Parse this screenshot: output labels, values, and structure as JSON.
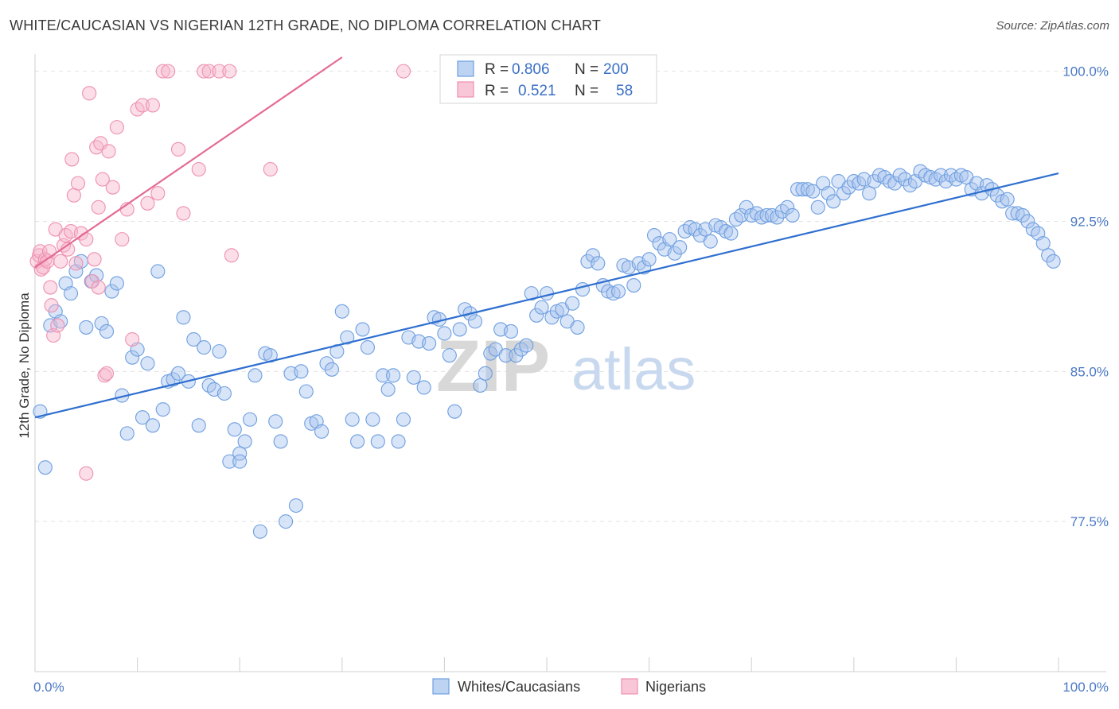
{
  "title": "WHITE/CAUCASIAN VS NIGERIAN 12TH GRADE, NO DIPLOMA CORRELATION CHART",
  "source": "Source: ZipAtlas.com",
  "watermark": {
    "zip": "ZIP",
    "atlas": "atlas"
  },
  "colors": {
    "blue": "#6e9fe0",
    "blue_line": "#2e6fd0",
    "pink": "#ee90b0",
    "pink_line": "#e46a94"
  },
  "legend_top": {
    "rows": [
      {
        "r_label": "R = ",
        "r_value": "0.806",
        "n_label": "N = ",
        "n_value": "200"
      },
      {
        "r_label": "R = ",
        "r_value": "0.521",
        "n_label": "N = ",
        "n_value": "58"
      }
    ]
  },
  "legend_bottom": [
    "Whites/Caucasians",
    "Nigerians"
  ],
  "chart_data": {
    "type": "scatter",
    "xlabel": "",
    "ylabel": "12th Grade, No Diploma",
    "xlim": [
      0,
      100
    ],
    "ylim": [
      70.0,
      100.7
    ],
    "x_tick_labels": [
      {
        "value": 0,
        "label": "0.0%"
      },
      {
        "value": 100,
        "label": "100.0%"
      }
    ],
    "y_tick_labels": [
      {
        "value": 100.0,
        "label": "100.0%"
      },
      {
        "value": 92.5,
        "label": "92.5%"
      },
      {
        "value": 85.0,
        "label": "85.0%"
      },
      {
        "value": 77.5,
        "label": "77.5%"
      }
    ],
    "grid": true,
    "series": [
      {
        "name": "Whites/Caucasians",
        "regression": {
          "x": [
            0,
            100
          ],
          "y": [
            82.7,
            94.9
          ]
        },
        "points": [
          [
            0.5,
            83
          ],
          [
            1,
            80.2
          ],
          [
            1.5,
            87.3
          ],
          [
            2,
            88
          ],
          [
            2.5,
            87.5
          ],
          [
            3,
            89.4
          ],
          [
            3.5,
            88.9
          ],
          [
            4,
            90
          ],
          [
            4.5,
            90.5
          ],
          [
            5,
            87.2
          ],
          [
            5.5,
            89.5
          ],
          [
            6,
            89.8
          ],
          [
            6.5,
            87.4
          ],
          [
            7,
            87
          ],
          [
            7.5,
            89
          ],
          [
            8,
            89.4
          ],
          [
            8.5,
            83.8
          ],
          [
            9,
            81.9
          ],
          [
            9.5,
            85.7
          ],
          [
            10,
            86.1
          ],
          [
            10.5,
            82.7
          ],
          [
            11,
            85.4
          ],
          [
            11.5,
            82.3
          ],
          [
            12,
            90
          ],
          [
            12.5,
            83.1
          ],
          [
            13,
            84.5
          ],
          [
            13.5,
            84.6
          ],
          [
            14,
            84.9
          ],
          [
            14.5,
            87.7
          ],
          [
            15,
            84.5
          ],
          [
            15.5,
            86.6
          ],
          [
            16,
            82.3
          ],
          [
            16.5,
            86.2
          ],
          [
            17,
            84.3
          ],
          [
            17.5,
            84.1
          ],
          [
            18,
            86
          ],
          [
            18.5,
            83.9
          ],
          [
            19,
            80.5
          ],
          [
            19.5,
            82.1
          ],
          [
            20,
            80.9
          ],
          [
            20.5,
            81.5
          ],
          [
            21,
            82.6
          ],
          [
            21.5,
            84.8
          ],
          [
            22,
            77
          ],
          [
            22.5,
            85.9
          ],
          [
            23,
            85.8
          ],
          [
            23.5,
            82.5
          ],
          [
            24,
            81.5
          ],
          [
            24.5,
            77.5
          ],
          [
            25,
            84.9
          ],
          [
            25.5,
            78.3
          ],
          [
            26,
            85
          ],
          [
            26.5,
            84
          ],
          [
            27,
            82.4
          ],
          [
            27.5,
            82.5
          ],
          [
            28,
            82
          ],
          [
            28.5,
            85.4
          ],
          [
            29,
            85.1
          ],
          [
            29.5,
            86
          ],
          [
            30,
            88
          ],
          [
            30.5,
            86.7
          ],
          [
            31,
            82.6
          ],
          [
            31.5,
            81.5
          ],
          [
            32,
            87.1
          ],
          [
            32.5,
            86.2
          ],
          [
            33,
            82.6
          ],
          [
            33.5,
            81.5
          ],
          [
            34,
            84.8
          ],
          [
            34.5,
            84.1
          ],
          [
            35,
            84.8
          ],
          [
            35.5,
            81.5
          ],
          [
            36,
            82.6
          ],
          [
            36.5,
            86.7
          ],
          [
            37,
            84.7
          ],
          [
            37.5,
            86.5
          ],
          [
            38,
            84.2
          ],
          [
            38.5,
            86.4
          ],
          [
            39,
            87.7
          ],
          [
            39.5,
            87.6
          ],
          [
            40,
            86.9
          ],
          [
            40.5,
            85.8
          ],
          [
            41,
            83
          ],
          [
            41.5,
            87.1
          ],
          [
            42,
            88.1
          ],
          [
            42.5,
            87.9
          ],
          [
            43,
            87.5
          ],
          [
            43.5,
            84.3
          ],
          [
            44,
            84.9
          ],
          [
            44.5,
            85.9
          ],
          [
            45,
            86.1
          ],
          [
            45.5,
            87.1
          ],
          [
            46,
            85.8
          ],
          [
            46.5,
            87
          ],
          [
            47,
            85.8
          ],
          [
            47.5,
            86.1
          ],
          [
            48,
            86.3
          ],
          [
            48.5,
            88.9
          ],
          [
            49,
            87.8
          ],
          [
            49.5,
            88.2
          ],
          [
            50,
            88.9
          ],
          [
            50.5,
            87.7
          ],
          [
            51,
            88
          ],
          [
            51.5,
            88.1
          ],
          [
            52,
            87.5
          ],
          [
            52.5,
            88.4
          ],
          [
            53,
            87.2
          ],
          [
            53.5,
            89.1
          ],
          [
            54,
            90.5
          ],
          [
            54.5,
            90.8
          ],
          [
            55,
            90.4
          ],
          [
            55.5,
            89.3
          ],
          [
            56,
            89
          ],
          [
            56.5,
            88.9
          ],
          [
            57,
            89
          ],
          [
            57.5,
            90.3
          ],
          [
            58,
            90.2
          ],
          [
            58.5,
            89.3
          ],
          [
            59,
            90.4
          ],
          [
            59.5,
            90.2
          ],
          [
            60,
            90.6
          ],
          [
            60.5,
            91.8
          ],
          [
            61,
            91.4
          ],
          [
            61.5,
            91.1
          ],
          [
            62,
            91.6
          ],
          [
            62.5,
            90.9
          ],
          [
            63,
            91.2
          ],
          [
            63.5,
            92
          ],
          [
            64,
            92.2
          ],
          [
            64.5,
            92.1
          ],
          [
            65,
            91.8
          ],
          [
            65.5,
            92.1
          ],
          [
            66,
            91.5
          ],
          [
            66.5,
            92.3
          ],
          [
            67,
            92.2
          ],
          [
            67.5,
            92
          ],
          [
            68,
            91.9
          ],
          [
            68.5,
            92.6
          ],
          [
            69,
            92.8
          ],
          [
            69.5,
            93.2
          ],
          [
            70,
            92.8
          ],
          [
            70.5,
            92.9
          ],
          [
            71,
            92.7
          ],
          [
            71.5,
            92.8
          ],
          [
            72,
            92.8
          ],
          [
            72.5,
            92.7
          ],
          [
            73,
            93
          ],
          [
            73.5,
            93.2
          ],
          [
            74,
            92.8
          ],
          [
            74.5,
            94.1
          ],
          [
            75,
            94.1
          ],
          [
            75.5,
            94.1
          ],
          [
            76,
            94
          ],
          [
            76.5,
            93.2
          ],
          [
            77,
            94.4
          ],
          [
            77.5,
            93.9
          ],
          [
            78,
            93.5
          ],
          [
            78.5,
            94.5
          ],
          [
            79,
            93.9
          ],
          [
            79.5,
            94.2
          ],
          [
            80,
            94.5
          ],
          [
            80.5,
            94.4
          ],
          [
            81,
            94.6
          ],
          [
            81.5,
            93.9
          ],
          [
            82,
            94.5
          ],
          [
            82.5,
            94.8
          ],
          [
            83,
            94.7
          ],
          [
            83.5,
            94.5
          ],
          [
            84,
            94.4
          ],
          [
            84.5,
            94.8
          ],
          [
            85,
            94.6
          ],
          [
            85.5,
            94.3
          ],
          [
            86,
            94.5
          ],
          [
            86.5,
            95
          ],
          [
            87,
            94.8
          ],
          [
            87.5,
            94.7
          ],
          [
            88,
            94.6
          ],
          [
            88.5,
            94.8
          ],
          [
            89,
            94.5
          ],
          [
            89.5,
            94.8
          ],
          [
            90,
            94.6
          ],
          [
            90.5,
            94.8
          ],
          [
            91,
            94.7
          ],
          [
            91.5,
            94.1
          ],
          [
            92,
            94.4
          ],
          [
            92.5,
            93.9
          ],
          [
            93,
            94.3
          ],
          [
            93.5,
            94.1
          ],
          [
            94,
            93.8
          ],
          [
            94.5,
            93.5
          ],
          [
            95,
            93.6
          ],
          [
            95.5,
            92.9
          ],
          [
            96,
            92.9
          ],
          [
            96.5,
            92.8
          ],
          [
            97,
            92.5
          ],
          [
            97.5,
            92.1
          ],
          [
            98,
            91.9
          ],
          [
            98.5,
            91.4
          ],
          [
            99,
            90.8
          ],
          [
            99.5,
            90.5
          ],
          [
            20,
            80.5
          ]
        ]
      },
      {
        "name": "Nigerians",
        "regression": {
          "x": [
            0,
            30
          ],
          "y": [
            90.2,
            100.7
          ]
        },
        "points": [
          [
            0.2,
            90.5
          ],
          [
            0.4,
            90.8
          ],
          [
            0.5,
            91
          ],
          [
            0.6,
            90.1
          ],
          [
            0.8,
            90.2
          ],
          [
            1,
            90.6
          ],
          [
            1.2,
            90.5
          ],
          [
            1.4,
            91
          ],
          [
            1.5,
            89.2
          ],
          [
            1.6,
            88.3
          ],
          [
            1.8,
            86.8
          ],
          [
            2,
            92.1
          ],
          [
            2.2,
            87.3
          ],
          [
            2.5,
            90.5
          ],
          [
            2.8,
            91.3
          ],
          [
            3,
            91.8
          ],
          [
            3.2,
            91.1
          ],
          [
            3.5,
            92
          ],
          [
            3.6,
            95.6
          ],
          [
            3.8,
            93.8
          ],
          [
            4,
            90.4
          ],
          [
            4.2,
            94.4
          ],
          [
            4.5,
            91.9
          ],
          [
            5,
            91.6
          ],
          [
            5.3,
            98.9
          ],
          [
            5.6,
            89.5
          ],
          [
            5.8,
            90.6
          ],
          [
            6,
            96.2
          ],
          [
            6.2,
            93.2
          ],
          [
            6.4,
            96.4
          ],
          [
            6.6,
            94.6
          ],
          [
            6.8,
            84.8
          ],
          [
            7,
            84.9
          ],
          [
            7.2,
            96
          ],
          [
            7.6,
            94.2
          ],
          [
            8,
            97.2
          ],
          [
            8.5,
            91.6
          ],
          [
            9,
            93.1
          ],
          [
            9.5,
            86.6
          ],
          [
            10,
            98.1
          ],
          [
            10.5,
            98.3
          ],
          [
            11,
            93.4
          ],
          [
            11.5,
            98.3
          ],
          [
            12,
            93.9
          ],
          [
            12.5,
            100
          ],
          [
            13,
            100
          ],
          [
            14,
            96.1
          ],
          [
            14.5,
            92.9
          ],
          [
            16,
            95.1
          ],
          [
            16.5,
            100
          ],
          [
            17,
            100
          ],
          [
            18,
            100
          ],
          [
            19,
            100
          ],
          [
            19.2,
            90.8
          ],
          [
            23,
            95.1
          ],
          [
            36,
            100
          ],
          [
            5,
            79.9
          ],
          [
            6.2,
            89.2
          ]
        ]
      }
    ]
  }
}
